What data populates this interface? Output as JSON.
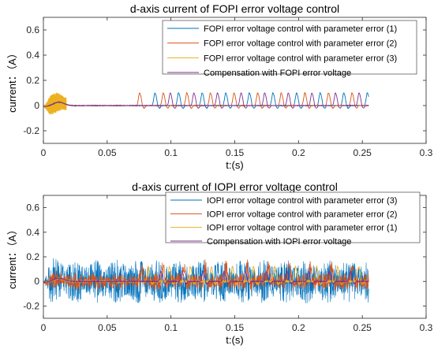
{
  "chart_data": [
    {
      "type": "line",
      "title": "d-axis current of FOPI error voltage control",
      "xlabel": "t:(s)",
      "ylabel": "current：（A）",
      "xlim": [
        0,
        0.3
      ],
      "ylim": [
        -0.3,
        0.7
      ],
      "xticks": [
        "0",
        "0.05",
        "0.1",
        "0.15",
        "0.2",
        "0.25",
        "0.3"
      ],
      "yticks": [
        "-0.2",
        "0",
        "0.2",
        "0.4",
        "0.6"
      ],
      "legend_position": "top-right",
      "series": [
        {
          "name": "FOPI error voltage control with parameter error (1)",
          "color": "#0072BD",
          "x_end": 0.255,
          "ripple_amp": 0.003,
          "spike_start": 0.085,
          "spike_period": 0.0185,
          "spike_height": 0.1
        },
        {
          "name": "FOPI error voltage control with parameter error (2)",
          "color": "#D95319",
          "x_end": 0.255,
          "ripple_amp": 0.003,
          "spike_start": 0.073,
          "spike_period": 0.0185,
          "spike_height": 0.1
        },
        {
          "name": "FOPI error voltage control with parameter error (3)",
          "color": "#EDB120",
          "x_end": 0.018,
          "ripple_amp": 0.09,
          "spike_start": null,
          "spike_period": null,
          "spike_height": 0
        },
        {
          "name": "Compensation with FOPI error voltage",
          "color": "#7E2F8E",
          "x_end": 0.255,
          "ripple_amp": 0.002,
          "spike_start": 0.097,
          "spike_period": 0.0185,
          "spike_height": 0.1
        }
      ]
    },
    {
      "type": "line",
      "title": "d-axis current of IOPI error voltage control",
      "xlabel": "t:(s)",
      "ylabel": "current：（A）",
      "xlim": [
        0,
        0.3
      ],
      "ylim": [
        -0.3,
        0.7
      ],
      "xticks": [
        "0",
        "0.05",
        "0.1",
        "0.15",
        "0.2",
        "0.25",
        "0.3"
      ],
      "yticks": [
        "-0.2",
        "0",
        "0.2",
        "0.4",
        "0.6"
      ],
      "legend_position": "top-right",
      "series": [
        {
          "name": "IOPI error voltage control with parameter error (3)",
          "color": "#0072BD",
          "x_end": 0.255,
          "ripple_amp": 0.2,
          "spike_start": null,
          "spike_period": null,
          "spike_height": 0
        },
        {
          "name": "IOPI error voltage control with parameter error (2)",
          "color": "#D95319",
          "x_end": 0.255,
          "ripple_amp": 0.08,
          "spike_start": 0.075,
          "spike_period": 0.0165,
          "spike_height": 0.12
        },
        {
          "name": "IOPI error voltage control with parameter error (1)",
          "color": "#EDB120",
          "x_end": 0.255,
          "ripple_amp": 0.01,
          "spike_start": 0.08,
          "spike_period": 0.0165,
          "spike_height": 0.12
        },
        {
          "name": "Compensation with IOPI error voltage",
          "color": "#7E2F8E",
          "x_end": 0.255,
          "ripple_amp": 0.005,
          "spike_start": 0.09,
          "spike_period": 0.0165,
          "spike_height": 0.08
        }
      ]
    }
  ]
}
